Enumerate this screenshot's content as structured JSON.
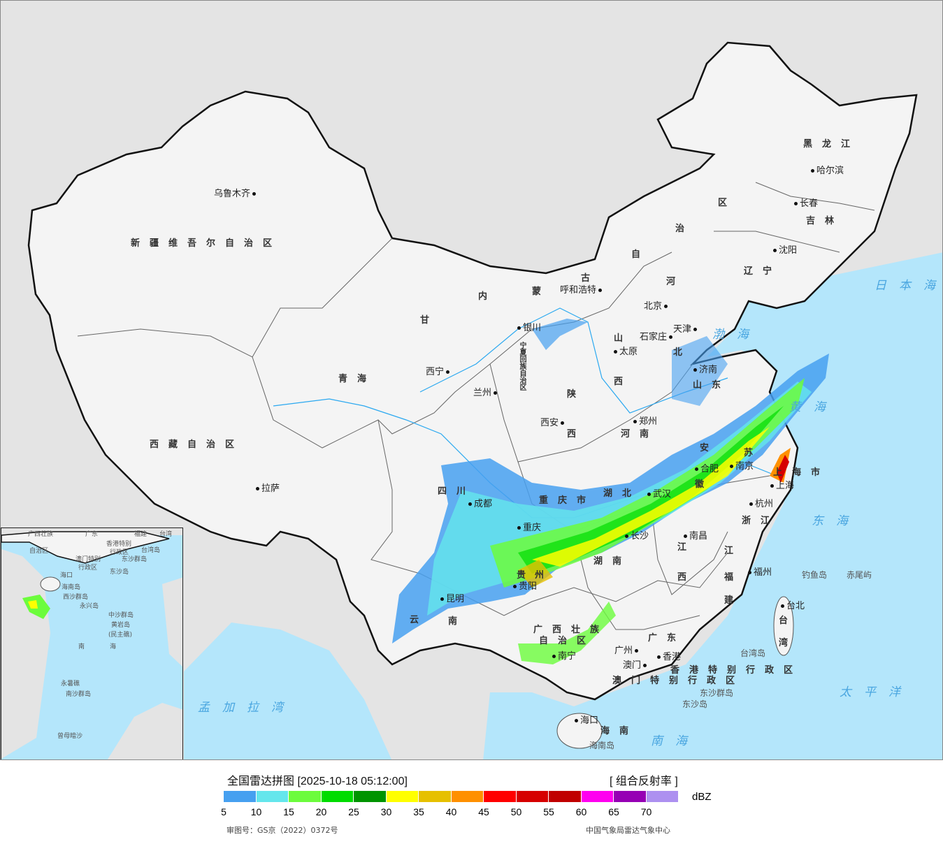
{
  "colors": {
    "land": "#f4f4f4",
    "outside": "#e4e4e4",
    "sea": "#b4e6fb",
    "river": "#2aa8f0",
    "border": "#111111"
  },
  "cities": [
    "乌鲁木齐",
    "拉萨",
    "西宁",
    "兰州",
    "银川",
    "呼和浩特",
    "北京",
    "天津",
    "石家庄",
    "太原",
    "济南",
    "郑州",
    "西安",
    "成都",
    "重庆",
    "合肥",
    "南京",
    "杭州",
    "长沙",
    "南昌",
    "福州",
    "贵阳",
    "昆明",
    "南宁",
    "广州",
    "香港",
    "澳门",
    "海口",
    "台北",
    "哈尔滨",
    "长春",
    "沈阳",
    "武汉",
    "上海"
  ],
  "provinces": [
    "新疆维吾尔自治区",
    "西藏自治区",
    "青海",
    "甘",
    "内",
    "蒙",
    "古",
    "自",
    "治",
    "区",
    "黑龙江",
    "吉林",
    "辽宁",
    "河",
    "北",
    "山",
    "西",
    "山东",
    "河南",
    "陕",
    "西",
    "四川",
    "重庆市",
    "湖北",
    "湖南",
    "安",
    "徽",
    "江",
    "苏",
    "上海市",
    "浙江",
    "江",
    "西",
    "福",
    "建",
    "贵",
    "州",
    "云",
    "南",
    "广西壮族",
    "自治区",
    "广东",
    "海南",
    "台",
    "湾",
    "香港特别行政区",
    "澳门特别行政区",
    "宁夏回族自治区"
  ],
  "seas": [
    "渤海",
    "黄海",
    "东海",
    "日本海",
    "太平洋",
    "南海",
    "孟加拉湾"
  ],
  "islands": [
    "钓鱼岛",
    "赤尾屿",
    "台湾岛",
    "东沙群岛",
    "东沙岛",
    "海南岛"
  ],
  "inset": {
    "labels": [
      "广西壮族",
      "自治区",
      "广东",
      "福建",
      "台湾",
      "香港特别",
      "行政区",
      "澳门特别",
      "行政区",
      "台湾岛",
      "东沙群岛",
      "东沙岛",
      "海口",
      "海南岛",
      "西沙群岛",
      "永兴岛",
      "中沙群岛",
      "黄岩岛",
      "(民主礁)",
      "南",
      "海",
      "永暑礁",
      "南沙群岛",
      "曾母暗沙"
    ]
  },
  "legend": {
    "title": "全国雷达拼图 [2025-10-18 05:12:00]",
    "product": "[ 组合反射率 ]",
    "unit": "dBZ",
    "scale_colors": [
      "#46a0f0",
      "#64e6ec",
      "#6cfc3c",
      "#00dc00",
      "#009400",
      "#ffff00",
      "#e6c000",
      "#ff9000",
      "#ff0000",
      "#d60000",
      "#c00000",
      "#ff00f0",
      "#9600b4",
      "#ad90f0"
    ],
    "ticks": [
      "5",
      "10",
      "15",
      "20",
      "25",
      "30",
      "35",
      "40",
      "45",
      "50",
      "55",
      "60",
      "65",
      "70"
    ],
    "approval": "审图号：GS京（2022）0372号",
    "source": "中国气象局雷达气象中心"
  }
}
